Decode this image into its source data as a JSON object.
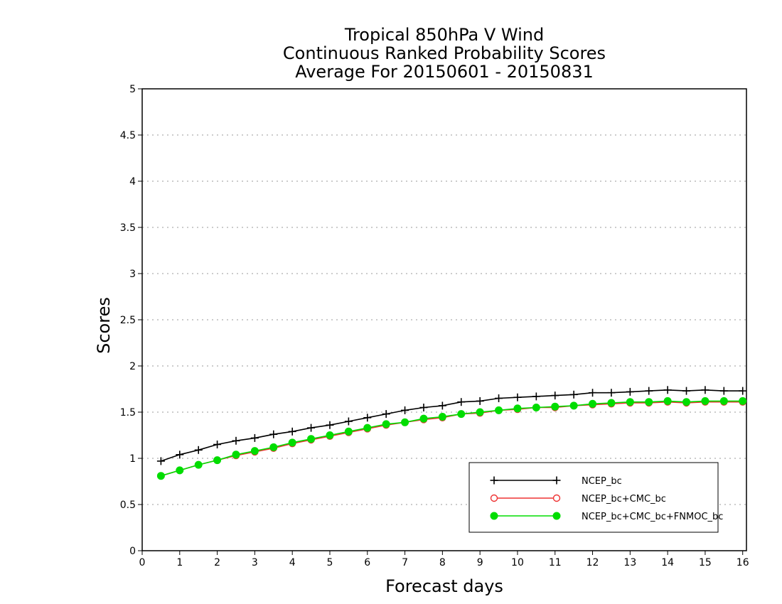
{
  "chart_data": {
    "type": "line",
    "title": [
      "Tropical 850hPa V Wind",
      "Continuous Ranked Probability Scores",
      "Average For 20150601 - 20150831"
    ],
    "xlabel": "Forecast days",
    "ylabel": "Scores",
    "xlim": [
      0,
      16.1
    ],
    "ylim": [
      0,
      5
    ],
    "x_ticks": [
      0,
      1,
      2,
      3,
      4,
      5,
      6,
      7,
      8,
      9,
      10,
      11,
      12,
      13,
      14,
      15,
      16
    ],
    "y_ticks": [
      0,
      0.5,
      1,
      1.5,
      2,
      2.5,
      3,
      3.5,
      4,
      4.5,
      5
    ],
    "y_tick_labels": [
      "0",
      "0.5",
      "1",
      "1.5",
      "2",
      "2.5",
      "3",
      "3.5",
      "4",
      "4.5",
      "5"
    ],
    "grid": "horizontal-dotted",
    "legend_position": "bottom-right",
    "x": [
      0.5,
      1,
      1.5,
      2,
      2.5,
      3,
      3.5,
      4,
      4.5,
      5,
      5.5,
      6,
      6.5,
      7,
      7.5,
      8,
      8.5,
      9,
      9.5,
      10,
      10.5,
      11,
      11.5,
      12,
      12.5,
      13,
      13.5,
      14,
      14.5,
      15,
      15.5,
      16
    ],
    "series": [
      {
        "name": "NCEP_bc",
        "color": "#000000",
        "marker": "plus",
        "values": [
          0.97,
          1.04,
          1.09,
          1.15,
          1.19,
          1.22,
          1.26,
          1.29,
          1.33,
          1.36,
          1.4,
          1.44,
          1.48,
          1.52,
          1.55,
          1.57,
          1.61,
          1.62,
          1.65,
          1.66,
          1.67,
          1.68,
          1.69,
          1.71,
          1.71,
          1.72,
          1.73,
          1.74,
          1.73,
          1.74,
          1.73,
          1.73
        ]
      },
      {
        "name": "NCEP_bc+CMC_bc",
        "color": "#ee3333",
        "marker": "open-circle",
        "values": [
          0.81,
          0.87,
          0.93,
          0.98,
          1.03,
          1.07,
          1.11,
          1.16,
          1.2,
          1.24,
          1.28,
          1.32,
          1.36,
          1.39,
          1.42,
          1.44,
          1.48,
          1.49,
          1.52,
          1.53,
          1.55,
          1.55,
          1.57,
          1.58,
          1.59,
          1.6,
          1.6,
          1.61,
          1.6,
          1.61,
          1.61,
          1.61
        ]
      },
      {
        "name": "NCEP_bc+CMC_bc+FNMOC_bc",
        "color": "#00dd00",
        "marker": "filled-circle",
        "values": [
          0.81,
          0.87,
          0.93,
          0.98,
          1.04,
          1.08,
          1.12,
          1.17,
          1.21,
          1.25,
          1.29,
          1.33,
          1.37,
          1.39,
          1.43,
          1.45,
          1.48,
          1.5,
          1.52,
          1.54,
          1.55,
          1.56,
          1.57,
          1.59,
          1.6,
          1.61,
          1.61,
          1.62,
          1.61,
          1.62,
          1.62,
          1.62
        ]
      }
    ]
  }
}
